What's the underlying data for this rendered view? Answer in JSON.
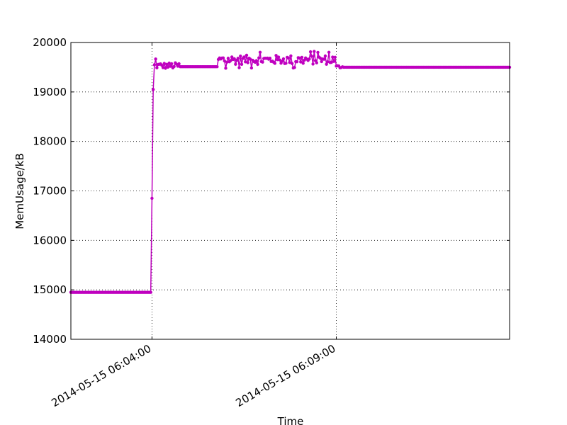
{
  "chart_data": {
    "type": "line",
    "title": "",
    "xlabel": "Time",
    "ylabel": "MemUsage/kB",
    "ylim": [
      14000,
      20000
    ],
    "yticks": [
      14000,
      15000,
      16000,
      17000,
      18000,
      19000,
      20000
    ],
    "ytick_labels": [
      "14000",
      "15000",
      "16000",
      "17000",
      "18000",
      "19000",
      "20000"
    ],
    "xlim": [
      "2014-05-15 06:01:48",
      "2014-05-15 06:13:42"
    ],
    "xticks": [
      "2014-05-15 06:04:00",
      "2014-05-15 06:09:00"
    ],
    "xtick_labels": [
      "2014-05-15 06:04:00",
      "2014-05-15 06:09:00"
    ],
    "grid": true,
    "legend": "none",
    "color": "#bf00bf",
    "marker": "dot",
    "sample_interval_seconds": 2,
    "series": [
      {
        "segments": [
          {
            "from": "2014-05-15 06:01:48",
            "to": "2014-05-15 06:03:58",
            "level": 14950,
            "pattern": "flat"
          },
          {
            "from": "2014-05-15 06:04:00",
            "to": "2014-05-15 06:04:00",
            "level": 16850,
            "pattern": "single"
          },
          {
            "from": "2014-05-15 06:04:02",
            "to": "2014-05-15 06:04:02",
            "level": 19050,
            "pattern": "single"
          },
          {
            "from": "2014-05-15 06:04:04",
            "to": "2014-05-15 06:04:44",
            "level": 19530,
            "pattern": "noisy",
            "min": 19450,
            "max": 19680
          },
          {
            "from": "2014-05-15 06:04:46",
            "to": "2014-05-15 06:05:46",
            "level": 19510,
            "pattern": "flat"
          },
          {
            "from": "2014-05-15 06:05:48",
            "to": "2014-05-15 06:08:58",
            "level": 19650,
            "pattern": "noisy",
            "min": 19480,
            "max": 19820
          },
          {
            "from": "2014-05-15 06:09:00",
            "to": "2014-05-15 06:09:10",
            "level": 19510,
            "pattern": "noisy",
            "min": 19450,
            "max": 19560
          },
          {
            "from": "2014-05-15 06:09:12",
            "to": "2014-05-15 06:13:42",
            "level": 19500,
            "pattern": "flat"
          }
        ]
      }
    ]
  }
}
